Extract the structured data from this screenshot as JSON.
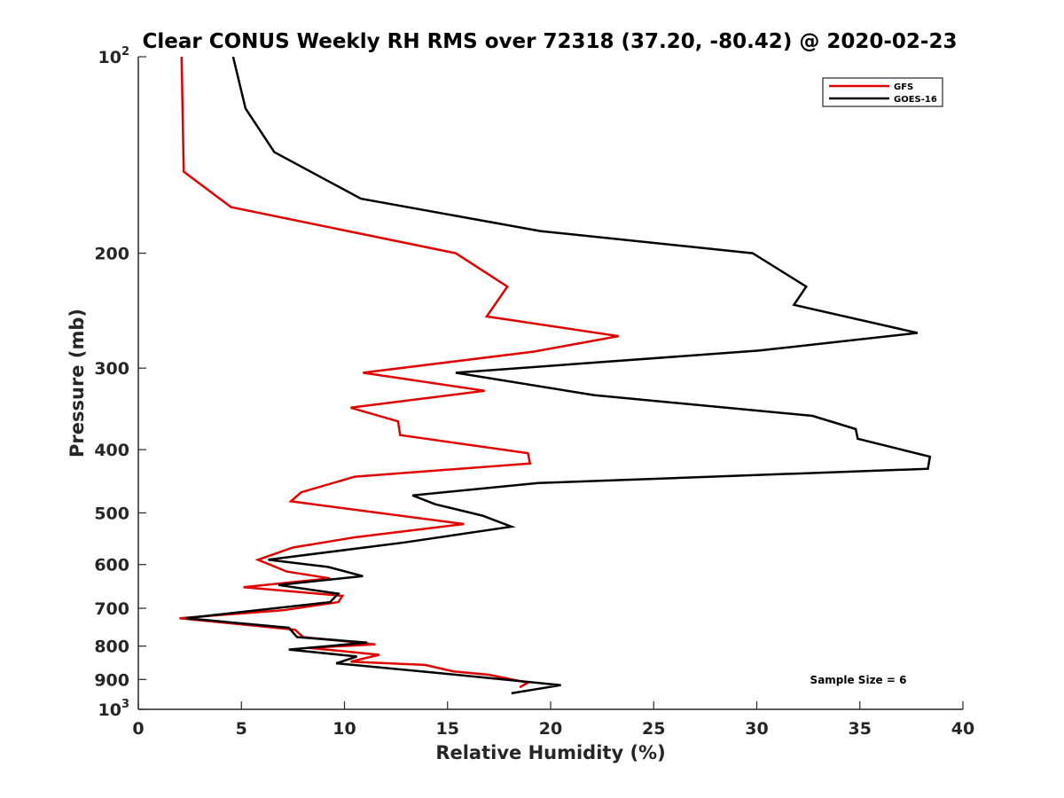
{
  "chart_data": {
    "type": "line",
    "title": "Clear CONUS Weekly RH RMS over 72318 (37.20, -80.42) @ 2020-02-23",
    "xlabel": "Relative Humidity (%)",
    "ylabel": "Pressure (mb)",
    "xlim": [
      0,
      40
    ],
    "ylim": [
      100,
      1000
    ],
    "yscale": "log",
    "y_reversed": true,
    "grid": false,
    "x_ticks": [
      0,
      5,
      10,
      15,
      20,
      25,
      30,
      35,
      40
    ],
    "x_tick_labels": [
      "0",
      "5",
      "10",
      "15",
      "20",
      "25",
      "30",
      "35",
      "40"
    ],
    "y_ticks": [
      100,
      200,
      300,
      400,
      500,
      600,
      700,
      800,
      900,
      1000
    ],
    "y_tick_labels": [
      {
        "base": "10",
        "exp": "2"
      },
      {
        "base": "200",
        "exp": ""
      },
      {
        "base": "300",
        "exp": ""
      },
      {
        "base": "400",
        "exp": ""
      },
      {
        "base": "500",
        "exp": ""
      },
      {
        "base": "600",
        "exp": ""
      },
      {
        "base": "700",
        "exp": ""
      },
      {
        "base": "800",
        "exp": ""
      },
      {
        "base": "900",
        "exp": ""
      },
      {
        "base": "10",
        "exp": "3"
      }
    ],
    "legend_position": "top-right",
    "annotation": "Sample Size = 6",
    "series": [
      {
        "name": "GFS",
        "color": "#e00000",
        "points": [
          [
            2.1,
            100
          ],
          [
            2.2,
            150
          ],
          [
            4.5,
            170
          ],
          [
            15.4,
            200
          ],
          [
            17.9,
            225
          ],
          [
            16.9,
            250
          ],
          [
            23.3,
            268
          ],
          [
            19.2,
            283
          ],
          [
            10.9,
            305
          ],
          [
            16.8,
            325
          ],
          [
            10.3,
            345
          ],
          [
            12.6,
            362
          ],
          [
            12.7,
            380
          ],
          [
            18.9,
            405
          ],
          [
            19.0,
            420
          ],
          [
            10.5,
            440
          ],
          [
            7.9,
            465
          ],
          [
            7.4,
            480
          ],
          [
            15.8,
            520
          ],
          [
            10.5,
            545
          ],
          [
            7.5,
            565
          ],
          [
            5.8,
            590
          ],
          [
            7.2,
            615
          ],
          [
            9.3,
            630
          ],
          [
            5.1,
            650
          ],
          [
            9.9,
            670
          ],
          [
            9.7,
            685
          ],
          [
            7.0,
            705
          ],
          [
            2.0,
            725
          ],
          [
            7.6,
            755
          ],
          [
            8.0,
            775
          ],
          [
            11.5,
            795
          ],
          [
            8.3,
            805
          ],
          [
            11.7,
            825
          ],
          [
            10.3,
            845
          ],
          [
            13.9,
            855
          ],
          [
            15.3,
            875
          ],
          [
            17.0,
            885
          ],
          [
            18.9,
            910
          ],
          [
            18.5,
            925
          ]
        ]
      },
      {
        "name": "GOES-16",
        "color": "#000000",
        "points": [
          [
            4.6,
            100
          ],
          [
            5.2,
            120
          ],
          [
            6.6,
            140
          ],
          [
            10.8,
            165
          ],
          [
            19.5,
            185
          ],
          [
            29.8,
            200
          ],
          [
            32.4,
            225
          ],
          [
            31.8,
            240
          ],
          [
            37.8,
            265
          ],
          [
            30.1,
            282
          ],
          [
            15.4,
            305
          ],
          [
            22.1,
            330
          ],
          [
            32.7,
            355
          ],
          [
            34.8,
            372
          ],
          [
            34.9,
            385
          ],
          [
            38.4,
            410
          ],
          [
            38.3,
            428
          ],
          [
            19.4,
            450
          ],
          [
            13.3,
            470
          ],
          [
            14.4,
            485
          ],
          [
            16.7,
            505
          ],
          [
            18.1,
            525
          ],
          [
            12.9,
            555
          ],
          [
            6.3,
            590
          ],
          [
            9.2,
            605
          ],
          [
            10.9,
            625
          ],
          [
            6.8,
            645
          ],
          [
            9.7,
            665
          ],
          [
            9.3,
            685
          ],
          [
            2.3,
            725
          ],
          [
            7.3,
            750
          ],
          [
            7.7,
            775
          ],
          [
            11.1,
            790
          ],
          [
            7.3,
            810
          ],
          [
            10.6,
            830
          ],
          [
            9.6,
            850
          ],
          [
            14.6,
            880
          ],
          [
            20.5,
            918
          ],
          [
            18.1,
            945
          ]
        ]
      }
    ]
  }
}
